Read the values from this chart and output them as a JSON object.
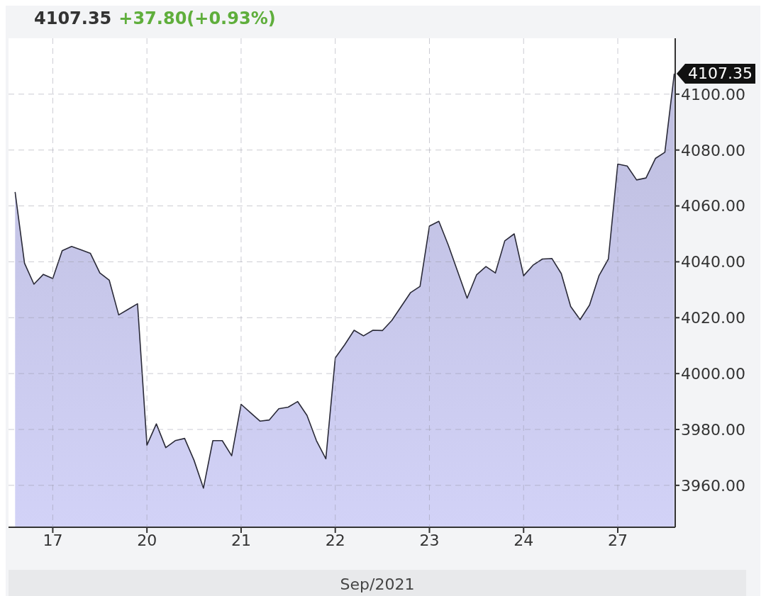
{
  "chart_data": {
    "type": "area",
    "title": "4107.35",
    "subtitle": "+37.80(+0.93%)",
    "xlabel": "Sep/2021",
    "categories": [
      null,
      null,
      null,
      null,
      "17",
      null,
      null,
      null,
      null,
      null,
      null,
      null,
      null,
      null,
      "20",
      null,
      null,
      null,
      null,
      null,
      null,
      null,
      null,
      null,
      "21",
      null,
      null,
      null,
      null,
      null,
      null,
      null,
      null,
      null,
      "22",
      null,
      null,
      null,
      null,
      null,
      null,
      null,
      null,
      null,
      "23",
      null,
      null,
      null,
      null,
      null,
      null,
      null,
      null,
      null,
      "24",
      null,
      null,
      null,
      null,
      null,
      null,
      null,
      null,
      null,
      "27",
      null,
      null,
      null,
      null,
      null,
      null
    ],
    "series": [
      {
        "color": "#bebedf",
        "values": [
          4065,
          4039.5,
          4032,
          4035.5,
          4034,
          4044,
          4045.5,
          4044.3,
          4043,
          4036,
          4033.4,
          4021,
          4023,
          4025,
          3974.4,
          3982,
          3973.5,
          3976,
          3976.8,
          3969,
          3959,
          3976,
          3976,
          3970.6,
          3989,
          3986,
          3983,
          3983.4,
          3987.4,
          3988,
          3990,
          3985,
          3976,
          3969.5,
          4005.6,
          4010.3,
          4015.5,
          4013.5,
          4015.5,
          4015.4,
          4019,
          4024,
          4029,
          4031.2,
          4052.8,
          4054.5,
          4046,
          4036.5,
          4027,
          4035.3,
          4038.3,
          4036,
          4047.5,
          4050,
          4035,
          4038.8,
          4041,
          4041.2,
          4035.8,
          4024,
          4019.3,
          4024.5,
          4035,
          4041,
          4075,
          4074.3,
          4069.3,
          4070,
          4077,
          4079.2,
          4107.35
        ]
      }
    ],
    "ylim": [
      3945,
      4120
    ],
    "yticks": [
      {
        "value": 3960,
        "label": "3960.00"
      },
      {
        "value": 3980,
        "label": "3980.00"
      },
      {
        "value": 4000,
        "label": "4000.00"
      },
      {
        "value": 4020,
        "label": "4020.00"
      },
      {
        "value": 4040,
        "label": "4040.00"
      },
      {
        "value": 4060,
        "label": "4060.00"
      },
      {
        "value": 4080,
        "label": "4080.00"
      },
      {
        "value": 4100,
        "label": "4100.00"
      }
    ],
    "annotations": [
      "4107.35"
    ],
    "grid": true,
    "legend": false
  }
}
